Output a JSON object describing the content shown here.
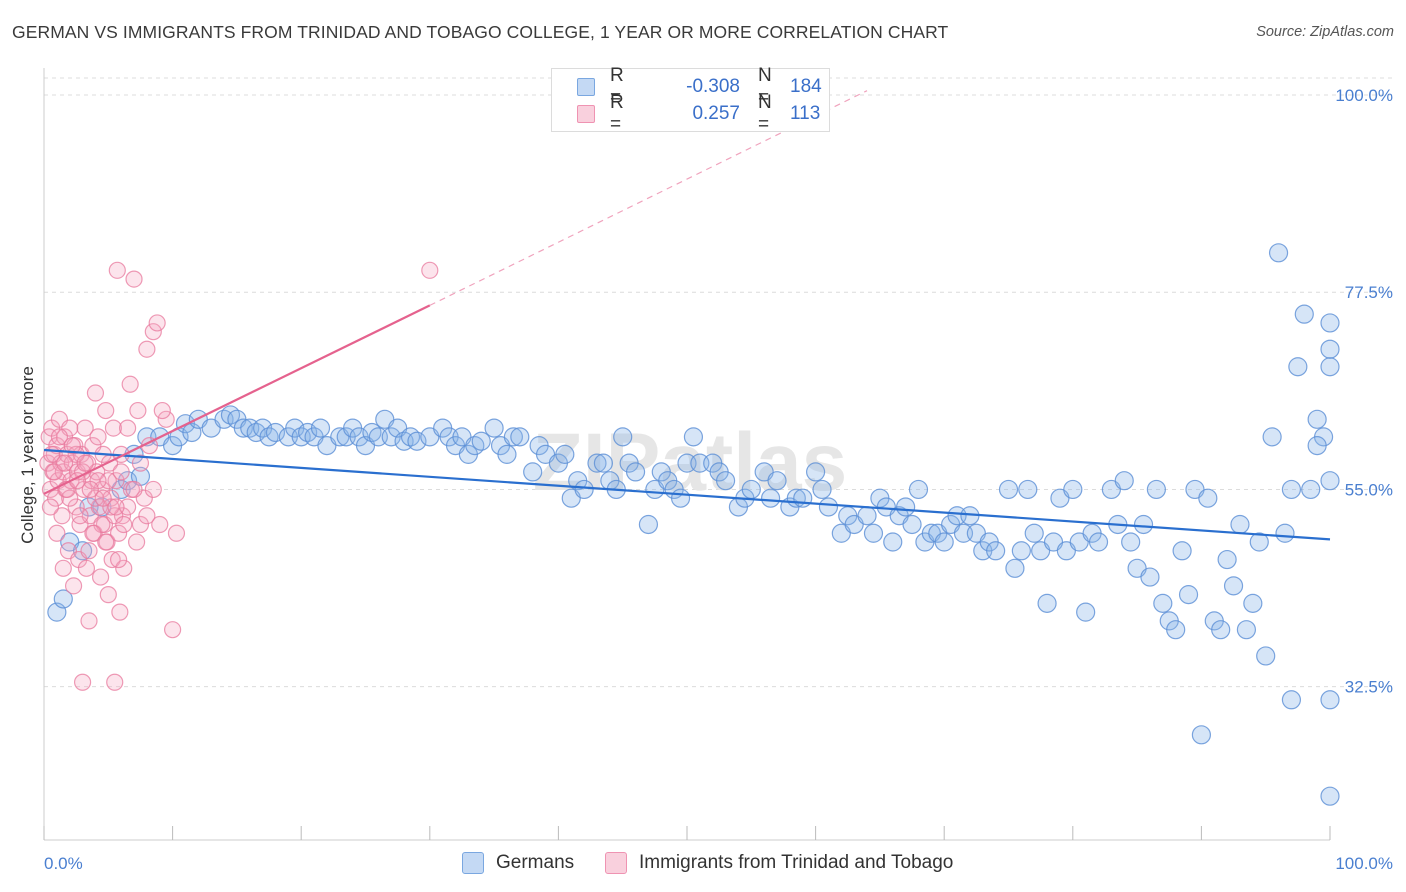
{
  "title": "GERMAN VS IMMIGRANTS FROM TRINIDAD AND TOBAGO COLLEGE, 1 YEAR OR MORE CORRELATION CHART",
  "source": "Source: ZipAtlas.com",
  "watermark": "ZIPatlas",
  "legend": {
    "rows": [
      {
        "r_label": "R =",
        "r_value": "-0.308",
        "n_label": "N =",
        "n_value": "184",
        "color": "#8ab4e8"
      },
      {
        "r_label": "R =",
        "r_value": "0.257",
        "n_label": "N =",
        "n_value": "113",
        "color": "#f4a6c0"
      }
    ]
  },
  "bottom_legend": [
    "Germans",
    "Immigrants from Trinidad and Tobago"
  ],
  "chart_data": {
    "type": "scatter",
    "xlabel": "",
    "ylabel": "College, 1 year or more",
    "xlim": [
      0,
      100
    ],
    "ylim": [
      15,
      104
    ],
    "x_tick_labels": [
      "0.0%",
      "100.0%"
    ],
    "y_ticks": [
      32.5,
      55.0,
      77.5,
      100.0
    ],
    "y_tick_labels": [
      "32.5%",
      "55.0%",
      "77.5%",
      "100.0%"
    ],
    "grid": "horizontal dashed",
    "legend_placement": "top-center",
    "series": [
      {
        "name": "Germans",
        "color": "#8ab4e8",
        "stroke": "#5b8fd6",
        "trend": {
          "x": [
            0,
            100
          ],
          "y": [
            59.5,
            49.3
          ]
        },
        "points": [
          [
            1,
            41
          ],
          [
            1.5,
            42.5
          ],
          [
            2,
            49
          ],
          [
            3,
            48
          ],
          [
            3.5,
            53
          ],
          [
            4.5,
            53
          ],
          [
            6,
            55
          ],
          [
            6.5,
            56
          ],
          [
            7,
            59
          ],
          [
            7.5,
            56.5
          ],
          [
            8,
            61
          ],
          [
            9,
            61
          ],
          [
            10,
            60
          ],
          [
            10.5,
            61
          ],
          [
            11,
            62.5
          ],
          [
            11.5,
            61.5
          ],
          [
            12,
            63
          ],
          [
            13,
            62
          ],
          [
            14,
            63
          ],
          [
            14.5,
            63.5
          ],
          [
            15,
            63
          ],
          [
            15.5,
            62
          ],
          [
            16,
            62
          ],
          [
            16.5,
            61.5
          ],
          [
            17,
            62
          ],
          [
            17.5,
            61
          ],
          [
            18,
            61.5
          ],
          [
            19,
            61
          ],
          [
            19.5,
            62
          ],
          [
            20,
            61
          ],
          [
            20.5,
            61.5
          ],
          [
            21,
            61
          ],
          [
            21.5,
            62
          ],
          [
            22,
            60
          ],
          [
            23,
            61
          ],
          [
            23.5,
            61
          ],
          [
            24,
            62
          ],
          [
            24.5,
            61
          ],
          [
            25,
            60
          ],
          [
            25.5,
            61.5
          ],
          [
            26,
            61
          ],
          [
            26.5,
            63
          ],
          [
            27,
            61
          ],
          [
            27.5,
            62
          ],
          [
            28,
            60.5
          ],
          [
            28.5,
            61
          ],
          [
            29,
            60.5
          ],
          [
            30,
            61
          ],
          [
            31,
            62
          ],
          [
            31.5,
            61
          ],
          [
            32,
            60
          ],
          [
            32.5,
            61
          ],
          [
            33,
            59
          ],
          [
            33.5,
            60
          ],
          [
            34,
            60.5
          ],
          [
            35,
            62
          ],
          [
            35.5,
            60
          ],
          [
            36,
            59
          ],
          [
            36.5,
            61
          ],
          [
            37,
            61
          ],
          [
            38,
            57
          ],
          [
            38.5,
            60
          ],
          [
            39,
            59
          ],
          [
            40,
            58
          ],
          [
            40.5,
            59
          ],
          [
            41,
            54
          ],
          [
            41.5,
            56
          ],
          [
            42,
            55
          ],
          [
            43,
            58
          ],
          [
            43.5,
            58
          ],
          [
            44,
            56
          ],
          [
            44.5,
            55
          ],
          [
            45,
            61
          ],
          [
            45.5,
            58
          ],
          [
            46,
            57
          ],
          [
            47,
            51
          ],
          [
            47.5,
            55
          ],
          [
            48,
            57
          ],
          [
            48.5,
            56
          ],
          [
            49,
            55
          ],
          [
            49.5,
            54
          ],
          [
            50,
            58
          ],
          [
            50.5,
            61
          ],
          [
            51,
            58
          ],
          [
            52,
            58
          ],
          [
            52.5,
            57
          ],
          [
            53,
            56
          ],
          [
            54,
            53
          ],
          [
            54.5,
            54
          ],
          [
            55,
            55
          ],
          [
            56,
            57
          ],
          [
            56.5,
            54
          ],
          [
            57,
            56
          ],
          [
            58,
            53
          ],
          [
            58.5,
            54
          ],
          [
            59,
            54
          ],
          [
            60,
            57
          ],
          [
            60.5,
            55
          ],
          [
            61,
            53
          ],
          [
            62,
            50
          ],
          [
            62.5,
            52
          ],
          [
            63,
            51
          ],
          [
            64,
            52
          ],
          [
            64.5,
            50
          ],
          [
            65,
            54
          ],
          [
            65.5,
            53
          ],
          [
            66,
            49
          ],
          [
            66.5,
            52
          ],
          [
            67,
            53
          ],
          [
            67.5,
            51
          ],
          [
            68,
            55
          ],
          [
            68.5,
            49
          ],
          [
            69,
            50
          ],
          [
            69.5,
            50
          ],
          [
            70,
            49
          ],
          [
            70.5,
            51
          ],
          [
            71,
            52
          ],
          [
            71.5,
            50
          ],
          [
            72,
            52
          ],
          [
            72.5,
            50
          ],
          [
            73,
            48
          ],
          [
            73.5,
            49
          ],
          [
            74,
            48
          ],
          [
            75,
            55
          ],
          [
            75.5,
            46
          ],
          [
            76,
            48
          ],
          [
            76.5,
            55
          ],
          [
            77,
            50
          ],
          [
            77.5,
            48
          ],
          [
            78,
            42
          ],
          [
            78.5,
            49
          ],
          [
            79,
            54
          ],
          [
            79.5,
            48
          ],
          [
            80,
            55
          ],
          [
            80.5,
            49
          ],
          [
            81,
            41
          ],
          [
            81.5,
            50
          ],
          [
            82,
            49
          ],
          [
            83,
            55
          ],
          [
            83.5,
            51
          ],
          [
            84,
            56
          ],
          [
            84.5,
            49
          ],
          [
            85,
            46
          ],
          [
            85.5,
            51
          ],
          [
            86,
            45
          ],
          [
            86.5,
            55
          ],
          [
            87,
            42
          ],
          [
            87.5,
            40
          ],
          [
            88,
            39
          ],
          [
            88.5,
            48
          ],
          [
            89,
            43
          ],
          [
            89.5,
            55
          ],
          [
            90,
            27
          ],
          [
            90.5,
            54
          ],
          [
            91,
            40
          ],
          [
            91.5,
            39
          ],
          [
            92,
            47
          ],
          [
            92.5,
            44
          ],
          [
            93,
            51
          ],
          [
            93.5,
            39
          ],
          [
            94,
            42
          ],
          [
            94.5,
            49
          ],
          [
            95,
            36
          ],
          [
            95.5,
            61
          ],
          [
            96,
            82
          ],
          [
            96.5,
            50
          ],
          [
            97,
            31
          ],
          [
            97.5,
            69
          ],
          [
            98,
            75
          ],
          [
            98.5,
            55
          ],
          [
            99,
            63
          ],
          [
            99.5,
            61
          ],
          [
            100,
            31
          ],
          [
            100,
            20
          ],
          [
            100,
            74
          ],
          [
            100,
            56
          ],
          [
            100,
            69
          ],
          [
            100,
            71
          ],
          [
            99,
            60
          ],
          [
            97,
            55
          ]
        ]
      },
      {
        "name": "Immigrants from Trinidad and Tobago",
        "color": "#f4a6c0",
        "stroke": "#e8799e",
        "trend": {
          "x": [
            0,
            30
          ],
          "y": [
            54.5,
            76
          ]
        },
        "trend_extension": {
          "x": [
            30,
            64
          ],
          "y": [
            76,
            100.5
          ]
        },
        "points": [
          [
            0.3,
            58
          ],
          [
            0.4,
            61
          ],
          [
            0.5,
            55
          ],
          [
            0.6,
            62
          ],
          [
            0.7,
            57
          ],
          [
            0.8,
            59
          ],
          [
            0.9,
            54
          ],
          [
            1,
            60
          ],
          [
            1.1,
            56
          ],
          [
            1.2,
            63
          ],
          [
            1.3,
            58
          ],
          [
            1.4,
            52
          ],
          [
            1.5,
            57
          ],
          [
            1.6,
            61
          ],
          [
            1.7,
            55
          ],
          [
            1.8,
            59
          ],
          [
            1.9,
            48
          ],
          [
            2,
            62
          ],
          [
            2.1,
            56
          ],
          [
            2.2,
            58
          ],
          [
            2.3,
            44
          ],
          [
            2.4,
            60
          ],
          [
            2.5,
            53
          ],
          [
            2.6,
            57
          ],
          [
            2.7,
            47
          ],
          [
            2.8,
            51
          ],
          [
            2.9,
            59
          ],
          [
            3,
            33
          ],
          [
            3.1,
            55
          ],
          [
            3.2,
            62
          ],
          [
            3.3,
            46
          ],
          [
            3.4,
            58
          ],
          [
            3.5,
            40
          ],
          [
            3.6,
            52
          ],
          [
            3.7,
            56
          ],
          [
            3.8,
            60
          ],
          [
            3.9,
            50
          ],
          [
            4,
            66
          ],
          [
            4.1,
            57
          ],
          [
            4.2,
            61
          ],
          [
            4.3,
            53
          ],
          [
            4.4,
            45
          ],
          [
            4.5,
            55
          ],
          [
            4.6,
            59
          ],
          [
            4.7,
            51
          ],
          [
            4.8,
            64
          ],
          [
            4.9,
            49
          ],
          [
            5,
            43
          ],
          [
            5.1,
            58
          ],
          [
            5.2,
            54
          ],
          [
            5.3,
            47
          ],
          [
            5.4,
            62
          ],
          [
            5.5,
            33
          ],
          [
            5.6,
            56
          ],
          [
            5.7,
            80
          ],
          [
            5.8,
            50
          ],
          [
            5.9,
            41
          ],
          [
            6,
            59
          ],
          [
            6.1,
            52
          ],
          [
            6.2,
            46
          ],
          [
            6.5,
            62
          ],
          [
            6.8,
            55
          ],
          [
            7,
            79
          ],
          [
            7.2,
            49
          ],
          [
            7.5,
            58
          ],
          [
            7.8,
            54
          ],
          [
            8,
            71
          ],
          [
            8.2,
            60
          ],
          [
            8.5,
            73
          ],
          [
            9,
            51
          ],
          [
            9.5,
            63
          ],
          [
            10,
            39
          ],
          [
            10.3,
            50
          ],
          [
            0.5,
            53
          ],
          [
            1,
            50
          ],
          [
            1.5,
            46
          ],
          [
            2,
            54
          ],
          [
            2.5,
            59
          ],
          [
            3,
            57
          ],
          [
            3.5,
            48
          ],
          [
            4,
            54
          ],
          [
            4.5,
            51
          ],
          [
            5,
            56
          ],
          [
            5.5,
            52
          ],
          [
            6,
            57
          ],
          [
            6.5,
            53
          ],
          [
            7,
            55
          ],
          [
            7.5,
            51
          ],
          [
            8,
            52
          ],
          [
            8.5,
            55
          ],
          [
            1.2,
            61
          ],
          [
            2.2,
            60
          ],
          [
            3.2,
            58
          ],
          [
            4.2,
            56
          ],
          [
            5.2,
            53
          ],
          [
            6.2,
            51
          ],
          [
            0.8,
            57
          ],
          [
            1.8,
            55
          ],
          [
            2.8,
            52
          ],
          [
            3.8,
            50
          ],
          [
            4.8,
            49
          ],
          [
            5.8,
            47
          ],
          [
            0.6,
            59
          ],
          [
            1.6,
            58
          ],
          [
            2.6,
            56
          ],
          [
            3.6,
            55
          ],
          [
            4.6,
            54
          ],
          [
            5.6,
            53
          ],
          [
            30,
            80
          ],
          [
            6.7,
            67
          ],
          [
            7.3,
            64
          ],
          [
            8.8,
            74
          ],
          [
            9.2,
            64
          ]
        ]
      }
    ]
  }
}
